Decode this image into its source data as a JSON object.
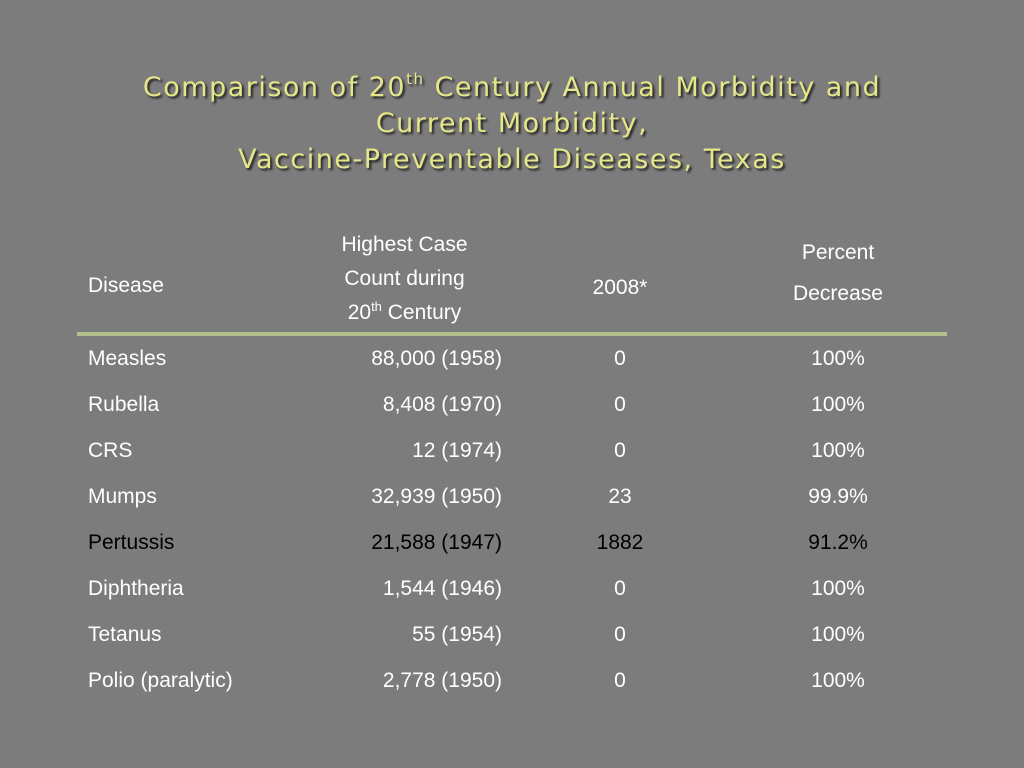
{
  "title": {
    "line1_pre": "Comparison of 20",
    "line1_sup": "th",
    "line1_post": " Century Annual Morbidity and",
    "line2": "Current Morbidity,",
    "line3": "Vaccine-Preventable Diseases, Texas"
  },
  "table": {
    "headers": {
      "disease": "Disease",
      "highest_line1": "Highest Case",
      "highest_line2": "Count during",
      "highest_line3_pre": "20",
      "highest_line3_sup": "th",
      "highest_line3_post": " Century",
      "year_2008": "2008*",
      "percent_line1": "Percent",
      "percent_line2": "Decrease"
    },
    "rows": [
      {
        "disease": "Measles",
        "highest": "88,000 (1958)",
        "y2008": "0",
        "percent": "100%",
        "highlight": false
      },
      {
        "disease": "Rubella",
        "highest": "8,408 (1970)",
        "y2008": "0",
        "percent": "100%",
        "highlight": false
      },
      {
        "disease": "CRS",
        "highest": "12 (1974)",
        "y2008": "0",
        "percent": "100%",
        "highlight": false
      },
      {
        "disease": "Mumps",
        "highest": "32,939 (1950)",
        "y2008": "23",
        "percent": "99.9%",
        "highlight": false
      },
      {
        "disease": "Pertussis",
        "highest": "21,588 (1947)",
        "y2008": "1882",
        "percent": "91.2%",
        "highlight": true
      },
      {
        "disease": "Diphtheria",
        "highest": "1,544 (1946)",
        "y2008": "0",
        "percent": "100%",
        "highlight": false
      },
      {
        "disease": "Tetanus",
        "highest": "55 (1954)",
        "y2008": "0",
        "percent": "100%",
        "highlight": false
      },
      {
        "disease": "Polio (paralytic)",
        "highest": "2,778 (1950)",
        "y2008": "0",
        "percent": "100%",
        "highlight": false
      }
    ]
  },
  "colors": {
    "background": "#7c7c7c",
    "title": "#e5e68a",
    "rule": "#b3c08a",
    "text": "#ffffff",
    "highlight_text": "#000000"
  }
}
